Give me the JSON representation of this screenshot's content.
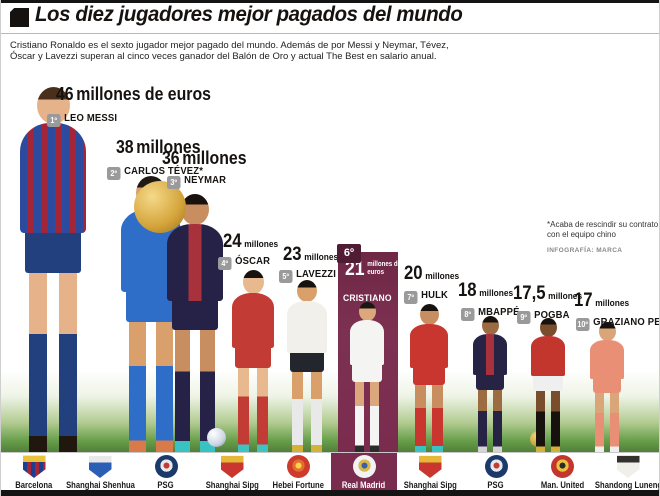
{
  "header": {
    "title": "Los diez jugadores mejor pagados del mundo",
    "intro_line1": "Cristiano Ronaldo es el sexto jugador mejor pagado del mundo. Además de por Messi y Neymar, Tévez,",
    "intro_line2": "Óscar y Lavezzi superan al cinco veces ganador del Balón de Oro y actual The Best en salario anual."
  },
  "footnote": {
    "line1": "*Acaba de rescindir su contrato",
    "line2": "con el equipo chino",
    "credit": "INFOGRAFÍA: MARCA"
  },
  "colors": {
    "highlight_maroon": "#7a2c4e",
    "highlight_maroon_dark": "#4f1c33",
    "rank_badge_gray": "#9a9a9a",
    "grass_green": "#5d9440",
    "ink": "#151210"
  },
  "players": [
    {
      "rank": "1º",
      "name": "LEO MESSI",
      "salary_value": "46",
      "salary_unit": "millones de euros",
      "club": "Barcelona",
      "kit": {
        "shirt": "#2c4a9e",
        "shirt_alt": "#a32638",
        "pattern": "stripes",
        "shorts": "#23407e",
        "socks": "#23407e",
        "skin": "#e6b28a",
        "hair": "#4a2f1d",
        "boots": "#20180f"
      }
    },
    {
      "rank": "2º",
      "name": "CARLOS TÉVEZ*",
      "salary_value": "38",
      "salary_unit": "millones",
      "club": "Shanghai Shenhua",
      "kit": {
        "shirt": "#2e6ec9",
        "pattern": "solid",
        "shorts": "#2e6ec9",
        "socks": "#2e6ec9",
        "skin": "#d9a06b",
        "hair": "#1f1a14",
        "boots": "#d97a4a"
      }
    },
    {
      "rank": "3º",
      "name": "NEYMAR",
      "salary_value": "36",
      "salary_unit": "millones",
      "club": "PSG",
      "kit": {
        "shirt": "#262247",
        "shirt_alt": "#a8323c",
        "pattern": "center",
        "shorts": "#262247",
        "socks": "#262247",
        "skin": "#c98e5f",
        "hair": "#17120e",
        "boots": "#38c2c2"
      }
    },
    {
      "rank": "4º",
      "name": "ÓSCAR",
      "salary_value": "24",
      "salary_unit": "millones",
      "club": "Shanghai Sipg",
      "kit": {
        "shirt": "#c23b35",
        "pattern": "solid",
        "shorts": "#c23b35",
        "socks": "#c23b35",
        "skin": "#e8b88f",
        "hair": "#17120e",
        "boots": "#3ec2c2"
      }
    },
    {
      "rank": "5º",
      "name": "LAVEZZI",
      "salary_value": "23",
      "salary_unit": "millones",
      "club": "Hebei Fortune",
      "kit": {
        "shirt": "#f1f0ea",
        "pattern": "solid",
        "shorts": "#23262d",
        "socks": "#e9e9e9",
        "skin": "#d9a06b",
        "hair": "#17120e",
        "boots": "#d4b23a"
      }
    },
    {
      "rank": "6º",
      "name": "CRISTIANO",
      "salary_value": "21",
      "salary_unit": "millones de euros",
      "club": "Real Madrid",
      "highlight": true,
      "kit": {
        "shirt": "#f4f4f2",
        "pattern": "solid",
        "shorts": "#f4f4f2",
        "socks": "#f4f4f2",
        "skin": "#dba87e",
        "hair": "#1c1712",
        "boots": "#2a2a2a"
      }
    },
    {
      "rank": "7º",
      "name": "HULK",
      "salary_value": "20",
      "salary_unit": "millones",
      "club": "Shanghai Sipg",
      "kit": {
        "shirt": "#c8362f",
        "pattern": "solid",
        "shorts": "#c8362f",
        "socks": "#c8362f",
        "skin": "#c98e5f",
        "hair": "#17120e",
        "boots": "#38c2c2"
      }
    },
    {
      "rank": "8º",
      "name": "MBAPPÉ",
      "salary_value": "18",
      "salary_unit": "millones",
      "club": "PSG",
      "kit": {
        "shirt": "#272345",
        "shirt_alt": "#a8323c",
        "pattern": "center",
        "shorts": "#272345",
        "socks": "#272345",
        "skin": "#9c6b42",
        "hair": "#17120e",
        "boots": "#d4d4d4"
      }
    },
    {
      "rank": "9º",
      "name": "POGBA",
      "salary_value": "17,5",
      "salary_unit": "millones",
      "club": "Man. United",
      "kit": {
        "shirt": "#c3362e",
        "pattern": "solid",
        "shorts": "#efefef",
        "socks": "#17120e",
        "skin": "#7a4e2c",
        "hair": "#17120e",
        "boots": "#d4b23a"
      }
    },
    {
      "rank": "10º",
      "name": "GRAZIANO PELLÉ",
      "salary_value": "17",
      "salary_unit": "millones",
      "club": "Shandong Luneng",
      "kit": {
        "shirt": "#e98f75",
        "pattern": "solid",
        "shorts": "#e98f75",
        "socks": "#e98f75",
        "skin": "#d9a579",
        "hair": "#17120e",
        "boots": "#efefef"
      }
    }
  ],
  "clubs": [
    {
      "name": "Barcelona",
      "crest": {
        "shape": "shield",
        "pattern": "barca",
        "c1": "#1d3e8f",
        "c2": "#a32638",
        "c3": "#e8c23a"
      }
    },
    {
      "name": "Shanghai Shenhua",
      "crest": {
        "shape": "shield",
        "c1": "#2a5fb4",
        "c2": "#e8e8e8",
        "c3": "#c23b35"
      }
    },
    {
      "name": "PSG",
      "crest": {
        "shape": "circle",
        "c1": "#1b3a6b",
        "c2": "#e8e8e8",
        "c3": "#c23b35"
      }
    },
    {
      "name": "Shanghai Sipg",
      "crest": {
        "shape": "shield",
        "c1": "#c8362f",
        "c2": "#e5b83a",
        "c3": "#ffffff"
      }
    },
    {
      "name": "Hebei Fortune",
      "crest": {
        "shape": "circle",
        "c1": "#cf3b2a",
        "c2": "#e07030",
        "c3": "#ffd24a"
      }
    },
    {
      "name": "Real Madrid",
      "highlight": true,
      "crest": {
        "shape": "circle",
        "c1": "#f2f2f2",
        "c2": "#d9b84a",
        "c3": "#3a5fa8"
      }
    },
    {
      "name": "Shanghai Sipg",
      "crest": {
        "shape": "shield",
        "c1": "#c8362f",
        "c2": "#e5b83a",
        "c3": "#ffffff"
      }
    },
    {
      "name": "PSG",
      "crest": {
        "shape": "circle",
        "c1": "#1b3a6b",
        "c2": "#e8e8e8",
        "c3": "#c23b35"
      }
    },
    {
      "name": "Man. United",
      "crest": {
        "shape": "circle",
        "c1": "#c3362e",
        "c2": "#e8c23a",
        "c3": "#2a2a2a"
      }
    },
    {
      "name": "Shandong Luneng",
      "crest": {
        "shape": "shield",
        "c1": "#f0efe9",
        "c2": "#33302e",
        "c3": "#e8822e"
      }
    }
  ],
  "chart_data": {
    "type": "bar",
    "representation": "pictogram (player height proportional to salary)",
    "title": "Los diez jugadores mejor pagados del mundo",
    "categories": [
      "Leo Messi",
      "Carlos Tévez",
      "Neymar",
      "Óscar",
      "Lavezzi",
      "Cristiano Ronaldo",
      "Hulk",
      "Mbappé",
      "Pogba",
      "Graziano Pellé"
    ],
    "values": [
      46,
      38,
      36,
      24,
      23,
      21,
      20,
      18,
      17.5,
      17
    ],
    "ranks": [
      "1º",
      "2º",
      "3º",
      "4º",
      "5º",
      "6º",
      "7º",
      "8º",
      "9º",
      "10º"
    ],
    "clubs": [
      "Barcelona",
      "Shanghai Shenhua",
      "PSG",
      "Shanghai Sipg",
      "Hebei Fortune",
      "Real Madrid",
      "Shanghai Sipg",
      "PSG",
      "Man. United",
      "Shandong Luneng"
    ],
    "unit": "millones de euros (salario anual)",
    "xlabel": "",
    "ylabel": "Salario anual",
    "ylim": [
      0,
      46
    ],
    "highlighted": "Cristiano Ronaldo",
    "legend_position": "none",
    "grid": false
  }
}
